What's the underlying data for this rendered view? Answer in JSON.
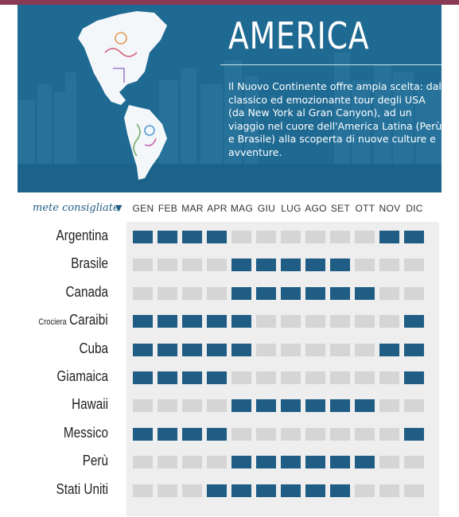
{
  "hero": {
    "title": "AMERICA",
    "description": "Il Nuovo Continente offre ampia scelta: dal classico ed emozionante tour degli USA (da New York al Gran Canyon), ad un viaggio nel cuore dell'America Latina (Perù e Brasile) alla scoperta di nuove culture e avventure."
  },
  "filter": {
    "label": "mete consigliate",
    "arrow": "▼"
  },
  "months": [
    "GEN",
    "FEB",
    "MAR",
    "APR",
    "MAG",
    "GIU",
    "LUG",
    "AGO",
    "SET",
    "OTT",
    "NOV",
    "DIC"
  ],
  "destinations": [
    {
      "prefix": "",
      "name": "Argentina",
      "months": [
        1,
        1,
        1,
        1,
        0,
        0,
        0,
        0,
        0,
        0,
        1,
        1
      ]
    },
    {
      "prefix": "",
      "name": "Brasile",
      "months": [
        0,
        0,
        0,
        0,
        1,
        1,
        1,
        1,
        1,
        0,
        0,
        0
      ]
    },
    {
      "prefix": "",
      "name": "Canada",
      "months": [
        0,
        0,
        0,
        0,
        1,
        1,
        1,
        1,
        1,
        1,
        0,
        0
      ]
    },
    {
      "prefix": "Crociera",
      "name": "Caraibi",
      "months": [
        1,
        1,
        1,
        1,
        1,
        0,
        0,
        0,
        0,
        0,
        0,
        1
      ]
    },
    {
      "prefix": "",
      "name": "Cuba",
      "months": [
        1,
        1,
        1,
        1,
        1,
        0,
        0,
        0,
        0,
        0,
        1,
        1
      ]
    },
    {
      "prefix": "",
      "name": "Giamaica",
      "months": [
        1,
        1,
        1,
        1,
        0,
        0,
        0,
        0,
        0,
        0,
        0,
        1
      ]
    },
    {
      "prefix": "",
      "name": "Hawaii",
      "months": [
        0,
        0,
        0,
        0,
        1,
        1,
        1,
        1,
        1,
        1,
        0,
        0
      ]
    },
    {
      "prefix": "",
      "name": "Messico",
      "months": [
        1,
        1,
        1,
        1,
        0,
        0,
        0,
        0,
        0,
        0,
        0,
        1
      ]
    },
    {
      "prefix": "",
      "name": "Perù",
      "months": [
        0,
        0,
        0,
        0,
        1,
        1,
        1,
        1,
        1,
        1,
        0,
        0
      ]
    },
    {
      "prefix": "",
      "name": "Stati Uniti",
      "months": [
        0,
        0,
        0,
        1,
        1,
        1,
        1,
        1,
        1,
        0,
        0,
        0
      ]
    }
  ],
  "colors": {
    "accent": "#1f5d85",
    "inactive": "#d5d5d5",
    "panel": "#eeeeee",
    "hero": "#1f6a93",
    "topbar": "#8a3a55"
  }
}
